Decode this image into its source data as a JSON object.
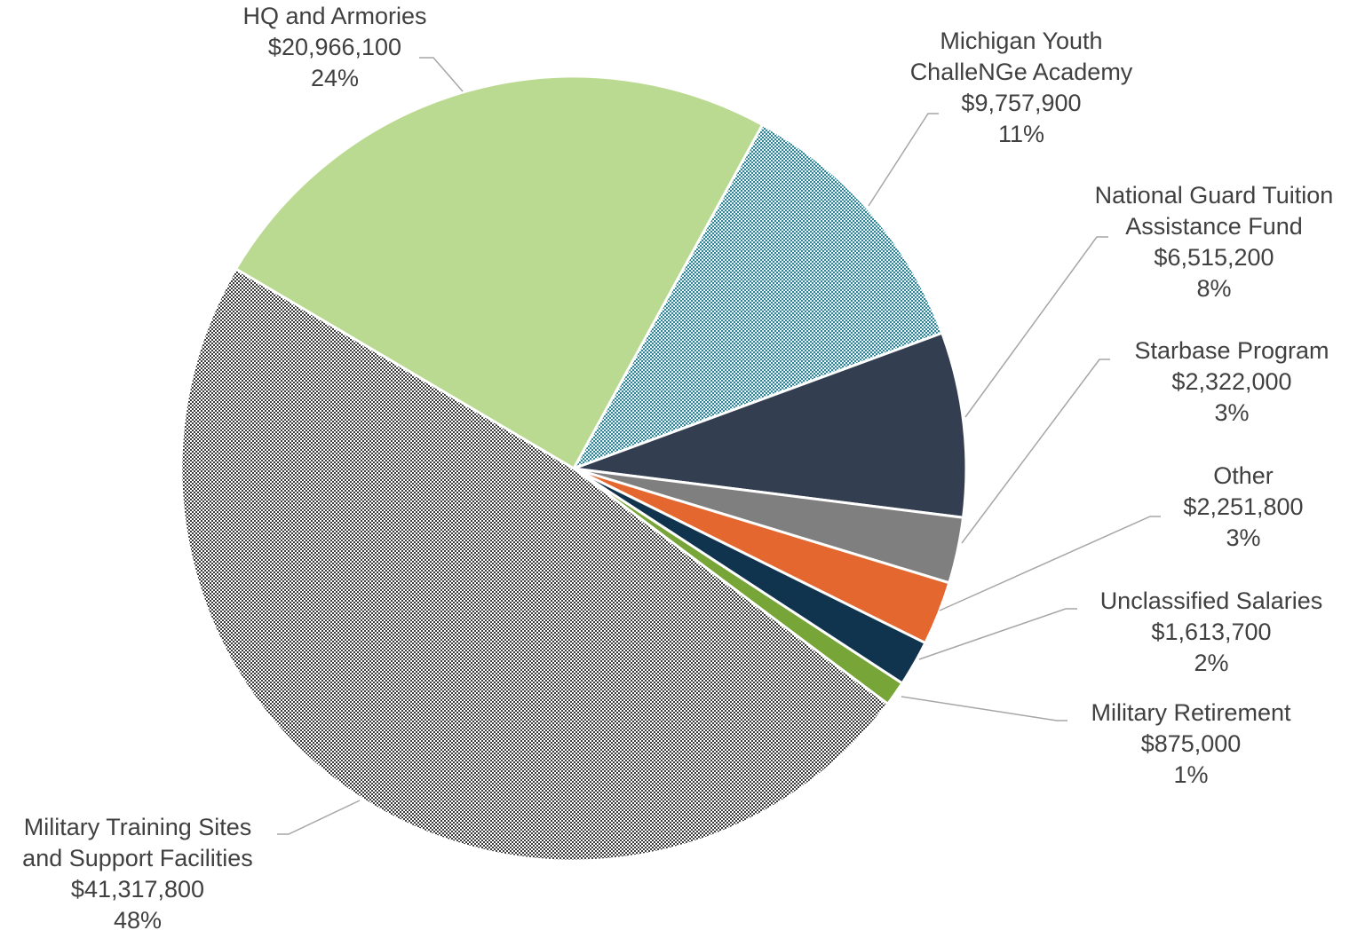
{
  "chart_data": {
    "type": "pie",
    "title": "",
    "slices": [
      {
        "label_lines": [
          "HQ and Armories"
        ],
        "amount": "$20,966,100",
        "percent": "24%",
        "value": 20966100,
        "color": "#bbda91",
        "fill": "solid"
      },
      {
        "label_lines": [
          "Michigan Youth",
          "ChalleNGe Academy"
        ],
        "amount": "$9,757,900",
        "percent": "11%",
        "value": 9757900,
        "color": "#2f8596",
        "fill": "dotted"
      },
      {
        "label_lines": [
          "National Guard Tuition",
          "Assistance Fund"
        ],
        "amount": "$6,515,200",
        "percent": "8%",
        "value": 6515200,
        "color": "#333f50",
        "fill": "solid"
      },
      {
        "label_lines": [
          "Starbase Program"
        ],
        "amount": "$2,322,000",
        "percent": "3%",
        "value": 2322000,
        "color": "#7f7f7f",
        "fill": "solid"
      },
      {
        "label_lines": [
          "Other"
        ],
        "amount": "$2,251,800",
        "percent": "3%",
        "value": 2251800,
        "color": "#e3672e",
        "fill": "solid"
      },
      {
        "label_lines": [
          "Unclassified Salaries"
        ],
        "amount": "$1,613,700",
        "percent": "2%",
        "value": 1613700,
        "color": "#11344e",
        "fill": "solid"
      },
      {
        "label_lines": [
          "Military Retirement"
        ],
        "amount": "$875,000",
        "percent": "1%",
        "value": 875000,
        "color": "#78a537",
        "fill": "solid"
      },
      {
        "label_lines": [
          "Military Training Sites",
          "and Support Facilities"
        ],
        "amount": "$41,317,800",
        "percent": "48%",
        "value": 41317800,
        "color": "#595959",
        "fill": "checker"
      }
    ],
    "legend": "none",
    "data_labels": "outside with leader lines"
  }
}
